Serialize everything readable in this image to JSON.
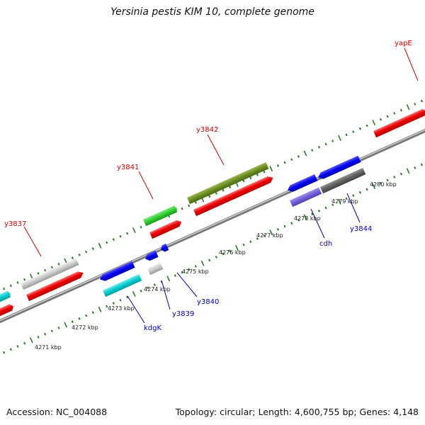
{
  "title": "Yersinia pestis KIM 10, complete genome",
  "footer": {
    "accession": "Accession: NC_004088",
    "summary": "Topology: circular; Length: 4,600,755 bp; Genes: 4,148"
  },
  "scale": {
    "unit": "kbp",
    "ticks": [
      "4271 kbp",
      "4272 kbp",
      "4273 kbp",
      "4274 kbp",
      "4275 kbp",
      "4276 kbp",
      "4277 kbp",
      "4278 kbp",
      "4279 kbp",
      "4280 kbp"
    ]
  },
  "gene_labels": {
    "forward": [
      "yapE",
      "y3842",
      "y3841",
      "y3837"
    ],
    "reverse": [
      "cdh",
      "y3844",
      "y3840",
      "y3839",
      "kdgK"
    ]
  },
  "colors": {
    "forward_label": "#dd0000",
    "reverse_label": "#0000cc",
    "backbone": "#888888",
    "tick": "#2a7a2a",
    "red": "#ee0000",
    "gray": "#c8c8c8",
    "green": "#33cc33",
    "olive": "#6b8e23",
    "blue": "#0000ee",
    "cyan": "#00cccc",
    "slate": "#7060d8",
    "dark_gray": "#606060"
  }
}
